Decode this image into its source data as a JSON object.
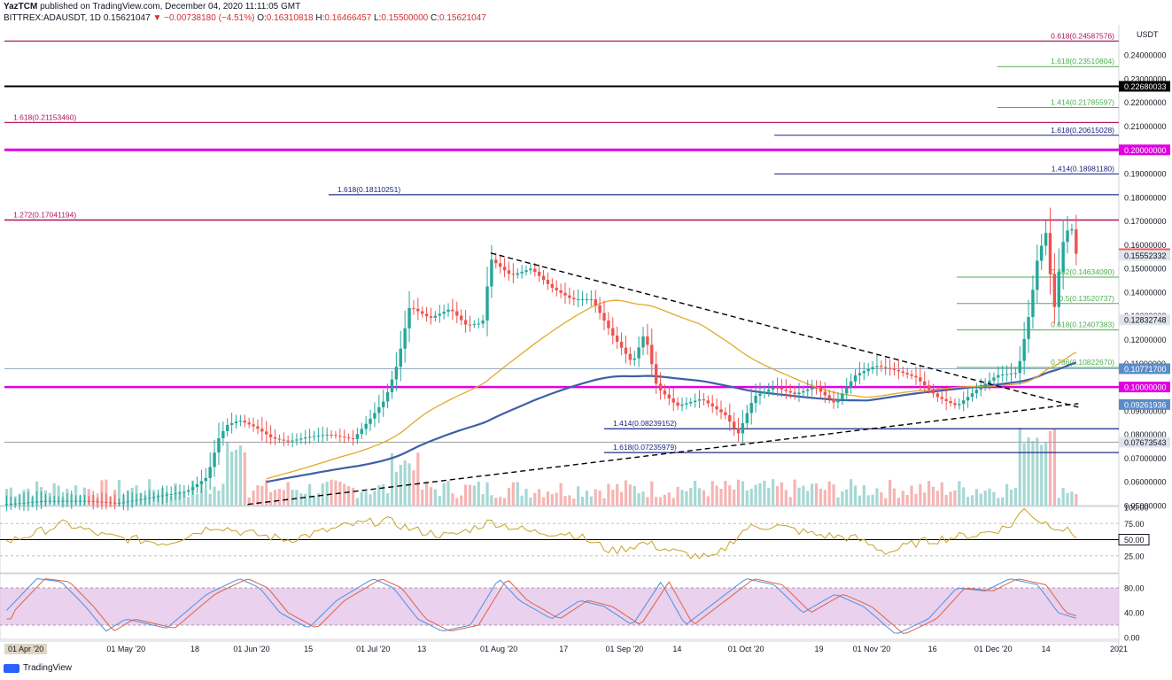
{
  "header": {
    "publisher": "YazTCM",
    "published_text": "published on TradingView.com, December 04, 2020 11:11:05 GMT",
    "symbol": "BITTREX:ADAUSDT, 1D",
    "last": "0.15621047",
    "change": "−0.00738180 (−4.51%)",
    "o_label": "O:",
    "o_value": "0.16310818",
    "h_label": "H:",
    "h_value": "0.16466457",
    "l_label": "L:",
    "l_value": "0.15500000",
    "c_label": "C:",
    "c_value": "0.15621047"
  },
  "footer": {
    "brand": "TradingView"
  },
  "colors": {
    "up": "#26a69a",
    "down": "#ef5350",
    "ma_fast": "#e3a92c",
    "ma_slow": "#3f5fa8",
    "magenta": "#e100e1",
    "fib_green": "#4caf50",
    "fib_blue": "#1a237e",
    "fib_red": "#ad1457",
    "rsi": "#c9a227",
    "stoch_k": "#4f8fe0",
    "stoch_d": "#d9634a",
    "stoch_band": "#e1bee7"
  },
  "chart_data": {
    "type": "candlestick",
    "currency_label": "USDT",
    "price_axis": {
      "range": [
        0.05,
        0.252
      ],
      "ticks": [
        "0.24000000",
        "0.23000000",
        "0.22000000",
        "0.21000000",
        "0.20000000",
        "0.19000000",
        "0.18000000",
        "0.17000000",
        "0.16000000",
        "0.15000000",
        "0.14000000",
        "0.13000000",
        "0.12000000",
        "0.11000000",
        "0.10000000",
        "0.09000000",
        "0.08000000",
        "0.07000000",
        "0.06000000",
        "0.05000000"
      ]
    },
    "time_axis": {
      "range_days": [
        0,
        275
      ],
      "labels": [
        {
          "text": "01 Apr '20",
          "day": 0
        },
        {
          "text": "01 May '20",
          "day": 30
        },
        {
          "text": "18",
          "day": 47
        },
        {
          "text": "01 Jun '20",
          "day": 61
        },
        {
          "text": "15",
          "day": 75
        },
        {
          "text": "01 Jul '20",
          "day": 91
        },
        {
          "text": "13",
          "day": 103
        },
        {
          "text": "01 Aug '20",
          "day": 122
        },
        {
          "text": "17",
          "day": 138
        },
        {
          "text": "01 Sep '20",
          "day": 153
        },
        {
          "text": "14",
          "day": 166
        },
        {
          "text": "01 Oct '20",
          "day": 183
        },
        {
          "text": "19",
          "day": 201
        },
        {
          "text": "01 Nov '20",
          "day": 214
        },
        {
          "text": "16",
          "day": 229
        },
        {
          "text": "01 Dec '20",
          "day": 244
        },
        {
          "text": "14",
          "day": 257
        },
        {
          "text": "2021",
          "day": 275
        }
      ]
    },
    "price_labels": [
      {
        "value": 0.22680033,
        "text": "0.22680033",
        "bg": "#000000",
        "color": "#ffffff"
      },
      {
        "value": 0.2,
        "text": "0.20000000",
        "bg": "#e100e1",
        "color": "#ffffff"
      },
      {
        "value": 0.15621047,
        "text": "0.15621047",
        "bg": "#ef5350",
        "color": "#ffffff"
      },
      {
        "value": 0.15552332,
        "text": "0.15552332",
        "bg": "#e0e3eb",
        "color": "#131722"
      },
      {
        "value": 0.12832748,
        "text": "0.12832748",
        "bg": "#e0e3eb",
        "color": "#131722"
      },
      {
        "value": 0.107717,
        "text": "0.10771700",
        "bg": "#5b8cc8",
        "color": "#ffffff"
      },
      {
        "value": 0.1,
        "text": "0.10000000",
        "bg": "#e100e1",
        "color": "#ffffff"
      },
      {
        "value": 0.09261936,
        "text": "0.09261936",
        "bg": "#5b8cc8",
        "color": "#ffffff"
      },
      {
        "value": 0.07673543,
        "text": "0.07673543",
        "bg": "#e0e3eb",
        "color": "#131722"
      }
    ],
    "horizontal_lines": [
      {
        "value": 0.24587576,
        "start_day": 0,
        "color": "#ad1457",
        "width": 1
      },
      {
        "value": 0.22680033,
        "start_day": 0,
        "color": "#000000",
        "width": 2
      },
      {
        "value": 0.2115346,
        "start_day": 0,
        "color": "#ad1457",
        "width": 1
      },
      {
        "value": 0.2,
        "start_day": 0,
        "color": "#e100e1",
        "width": 3
      },
      {
        "value": 0.18110251,
        "start_day": 80,
        "color": "#1a237e",
        "width": 1
      },
      {
        "value": 0.17041194,
        "start_day": 0,
        "color": "#ad1457",
        "width": 1.5
      },
      {
        "value": 0.1,
        "start_day": 0,
        "color": "#e100e1",
        "width": 2.5
      },
      {
        "value": 0.107717,
        "start_day": 0,
        "color": "#8aa2bf",
        "width": 1
      },
      {
        "value": 0.07673543,
        "start_day": 0,
        "color": "#9e9e9e",
        "width": 1
      },
      {
        "value": 0.08239152,
        "start_day": 148,
        "color": "#1a237e",
        "width": 1
      },
      {
        "value": 0.07235979,
        "start_day": 148,
        "color": "#1a237e",
        "width": 1
      }
    ],
    "fib_lines": [
      {
        "label": "0.618(0.24587576)",
        "value": 0.24587576,
        "start_day": 0,
        "color": "#ad1457",
        "label_side": "right"
      },
      {
        "label": "1.618(0.23510804)",
        "value": 0.23510804,
        "start_day": 245,
        "color": "#4caf50",
        "label_side": "right"
      },
      {
        "label": "1.414(0.21785597)",
        "value": 0.21785597,
        "start_day": 245,
        "color": "#4caf50",
        "label_side": "right"
      },
      {
        "label": "1.618(0.21153460)",
        "value": 0.2115346,
        "start_day": 0,
        "color": "#ad1457",
        "label_side": "left"
      },
      {
        "label": "1.618(0.20615028)",
        "value": 0.20615028,
        "start_day": 190,
        "color": "#1a237e",
        "label_side": "right"
      },
      {
        "label": "1.414(0.18981180)",
        "value": 0.1898118,
        "start_day": 190,
        "color": "#1a237e",
        "label_side": "right"
      },
      {
        "label": "1.618(0.18110251)",
        "value": 0.18110251,
        "start_day": 80,
        "color": "#1a237e",
        "label_side": "left"
      },
      {
        "label": "1.272(0.17041194)",
        "value": 0.17041194,
        "start_day": 0,
        "color": "#ad1457",
        "label_side": "left"
      },
      {
        "label": "0.382(0.14634090)",
        "value": 0.1463409,
        "start_day": 235,
        "color": "#4caf50",
        "label_side": "right"
      },
      {
        "label": "0.5(0.13520737)",
        "value": 0.13520737,
        "start_day": 235,
        "color": "#4caf50",
        "label_side": "right"
      },
      {
        "label": "0.618(0.12407383)",
        "value": 0.12407383,
        "start_day": 235,
        "color": "#4caf50",
        "label_side": "right"
      },
      {
        "label": "0.786(0.10822670)",
        "value": 0.1082267,
        "start_day": 235,
        "color": "#4caf50",
        "label_side": "right"
      },
      {
        "label": "1.414(0.08239152)",
        "value": 0.08239152,
        "start_day": 148,
        "color": "#1a237e",
        "label_side": "left"
      },
      {
        "label": "1.618(0.07235979)",
        "value": 0.07235979,
        "start_day": 148,
        "color": "#1a237e",
        "label_side": "left"
      }
    ],
    "trendlines": [
      {
        "from": [
          120,
          0.1565
        ],
        "to": [
          265,
          0.0915
        ],
        "style": "dashed"
      },
      {
        "from": [
          60,
          0.0505
        ],
        "to": [
          265,
          0.093
        ],
        "style": "dashed"
      }
    ],
    "anchors": [
      [
        0,
        0.0505
      ],
      [
        10,
        0.052
      ],
      [
        20,
        0.052
      ],
      [
        28,
        0.051
      ],
      [
        38,
        0.054
      ],
      [
        45,
        0.056
      ],
      [
        50,
        0.062
      ],
      [
        53,
        0.079
      ],
      [
        55,
        0.084
      ],
      [
        58,
        0.086
      ],
      [
        62,
        0.083
      ],
      [
        66,
        0.0785
      ],
      [
        70,
        0.077
      ],
      [
        75,
        0.079
      ],
      [
        80,
        0.08
      ],
      [
        86,
        0.078
      ],
      [
        90,
        0.086
      ],
      [
        94,
        0.095
      ],
      [
        97,
        0.11
      ],
      [
        100,
        0.134
      ],
      [
        105,
        0.129
      ],
      [
        110,
        0.133
      ],
      [
        114,
        0.126
      ],
      [
        118,
        0.127
      ],
      [
        120,
        0.154
      ],
      [
        125,
        0.147
      ],
      [
        130,
        0.15
      ],
      [
        135,
        0.142
      ],
      [
        140,
        0.137
      ],
      [
        145,
        0.137
      ],
      [
        150,
        0.122
      ],
      [
        155,
        0.11
      ],
      [
        158,
        0.123
      ],
      [
        161,
        0.1
      ],
      [
        166,
        0.092
      ],
      [
        172,
        0.095
      ],
      [
        178,
        0.088
      ],
      [
        181,
        0.08
      ],
      [
        185,
        0.096
      ],
      [
        190,
        0.1
      ],
      [
        195,
        0.097
      ],
      [
        200,
        0.1
      ],
      [
        205,
        0.093
      ],
      [
        210,
        0.105
      ],
      [
        215,
        0.109
      ],
      [
        220,
        0.107
      ],
      [
        225,
        0.104
      ],
      [
        230,
        0.096
      ],
      [
        235,
        0.092
      ],
      [
        240,
        0.099
      ],
      [
        245,
        0.105
      ],
      [
        250,
        0.106
      ],
      [
        253,
        0.132
      ],
      [
        255,
        0.155
      ],
      [
        257,
        0.165
      ],
      [
        259,
        0.132
      ],
      [
        261,
        0.16
      ],
      [
        263,
        0.169
      ],
      [
        265,
        0.1562
      ]
    ],
    "candle_count": 248,
    "last_close": 0.15621047,
    "ma_fast_period": 50,
    "ma_slow_period": 200,
    "rsi": {
      "range": [
        0,
        100
      ],
      "ticks": [
        "100.00",
        "75.00",
        "50.00",
        "25.00"
      ],
      "level_label": "50.00",
      "anchors": [
        [
          0,
          45
        ],
        [
          15,
          75
        ],
        [
          25,
          55
        ],
        [
          40,
          45
        ],
        [
          52,
          72
        ],
        [
          60,
          60
        ],
        [
          70,
          50
        ],
        [
          85,
          72
        ],
        [
          94,
          80
        ],
        [
          101,
          65
        ],
        [
          110,
          55
        ],
        [
          120,
          78
        ],
        [
          130,
          62
        ],
        [
          140,
          60
        ],
        [
          150,
          32
        ],
        [
          158,
          45
        ],
        [
          166,
          30
        ],
        [
          175,
          20
        ],
        [
          183,
          68
        ],
        [
          190,
          72
        ],
        [
          200,
          58
        ],
        [
          210,
          52
        ],
        [
          218,
          30
        ],
        [
          225,
          45
        ],
        [
          232,
          52
        ],
        [
          240,
          58
        ],
        [
          248,
          70
        ],
        [
          252,
          100
        ],
        [
          255,
          80
        ],
        [
          260,
          70
        ],
        [
          265,
          55
        ]
      ]
    },
    "stoch": {
      "range": [
        0,
        100
      ],
      "ticks": [
        "80.00",
        "40.00",
        "0.00"
      ],
      "anchors": [
        [
          0,
          40
        ],
        [
          8,
          95
        ],
        [
          14,
          90
        ],
        [
          20,
          50
        ],
        [
          25,
          10
        ],
        [
          30,
          30
        ],
        [
          40,
          15
        ],
        [
          50,
          70
        ],
        [
          58,
          95
        ],
        [
          63,
          80
        ],
        [
          68,
          40
        ],
        [
          75,
          15
        ],
        [
          82,
          60
        ],
        [
          91,
          95
        ],
        [
          96,
          80
        ],
        [
          102,
          30
        ],
        [
          108,
          10
        ],
        [
          115,
          20
        ],
        [
          122,
          95
        ],
        [
          127,
          60
        ],
        [
          135,
          30
        ],
        [
          142,
          60
        ],
        [
          148,
          50
        ],
        [
          155,
          20
        ],
        [
          162,
          90
        ],
        [
          168,
          20
        ],
        [
          176,
          60
        ],
        [
          183,
          95
        ],
        [
          190,
          85
        ],
        [
          197,
          40
        ],
        [
          205,
          70
        ],
        [
          212,
          50
        ],
        [
          220,
          5
        ],
        [
          228,
          30
        ],
        [
          235,
          80
        ],
        [
          242,
          75
        ],
        [
          248,
          95
        ],
        [
          255,
          85
        ],
        [
          260,
          40
        ],
        [
          265,
          30
        ]
      ]
    }
  }
}
